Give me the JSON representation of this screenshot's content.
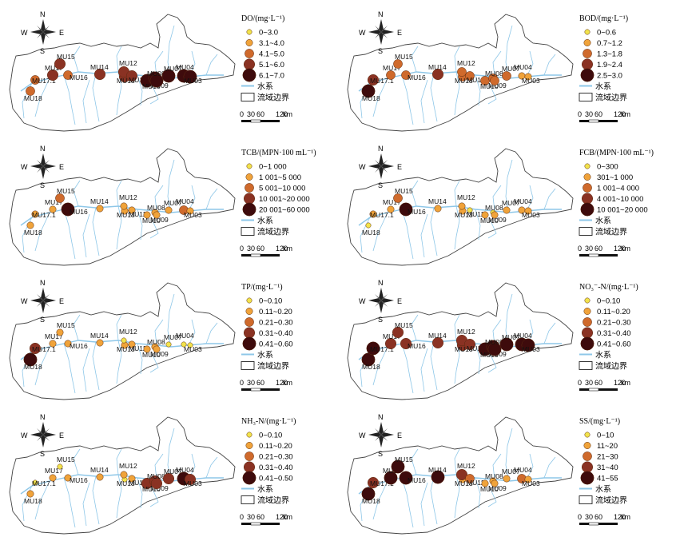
{
  "compass": {
    "n": "N",
    "s": "S",
    "e": "E",
    "w": "W"
  },
  "common_legend": {
    "river": "水系",
    "boundary": "流域边界"
  },
  "scale": {
    "ticks": [
      "0",
      "30",
      "60",
      "120"
    ],
    "unit": "km"
  },
  "panels": [
    {
      "id": "do",
      "title": "DO/(mg·L⁻¹)",
      "classes": [
        "0~3.0",
        "3.1~4.0",
        "4.1~5.0",
        "5.1~6.0",
        "6.1~7.0"
      ],
      "site_class": {
        "MU18": 3,
        "MU17": 4,
        "MU17.1": 3,
        "MU16": 3,
        "MU15": 4,
        "MU14": 4,
        "MU13": 4,
        "MU12": 4,
        "MU11": 4,
        "MU10": 5,
        "MU08": 5,
        "MU09": 5,
        "MU07": 5,
        "MU04": 5,
        "MU03": 5
      }
    },
    {
      "id": "bod",
      "title": "BOD/(mg·L⁻¹)",
      "classes": [
        "0~0.6",
        "0.7~1.2",
        "1.3~1.8",
        "1.9~2.4",
        "2.5~3.0"
      ],
      "site_class": {
        "MU18": 5,
        "MU17": 3,
        "MU17.1": 4,
        "MU16": 3,
        "MU15": 3,
        "MU14": 4,
        "MU13": 3,
        "MU12": 3,
        "MU11": 3,
        "MU10": 3,
        "MU08": 3,
        "MU09": 3,
        "MU07": 3,
        "MU04": 2,
        "MU03": 2
      }
    },
    {
      "id": "tcb",
      "title": "TCB/(MPN·100 mL⁻¹)",
      "classes": [
        "0~1 000",
        "1 001~5 000",
        "5 001~10 000",
        "10 001~20 000",
        "20 001~60 000"
      ],
      "site_class": {
        "MU18": 2,
        "MU17": 2,
        "MU17.1": 2,
        "MU16": 5,
        "MU15": 3,
        "MU14": 2,
        "MU13": 2,
        "MU12": 2,
        "MU11": 2,
        "MU10": 2,
        "MU08": 2,
        "MU09": 2,
        "MU07": 2,
        "MU04": 3,
        "MU03": 2
      }
    },
    {
      "id": "fcb",
      "title": "FCB/(MPN·100 mL⁻¹)",
      "classes": [
        "0~300",
        "301~1 000",
        "1 001~4 000",
        "4 001~10 000",
        "10 001~20 000"
      ],
      "site_class": {
        "MU18": 1,
        "MU17": 2,
        "MU17.1": 2,
        "MU16": 5,
        "MU15": 3,
        "MU14": 2,
        "MU13": 2,
        "MU12": 2,
        "MU11": 1,
        "MU10": 2,
        "MU08": 2,
        "MU09": 1,
        "MU07": 2,
        "MU04": 2,
        "MU03": 2
      }
    },
    {
      "id": "tp",
      "title": "TP/(mg·L⁻¹)",
      "classes": [
        "0~0.10",
        "0.11~0.20",
        "0.21~0.30",
        "0.31~0.40",
        "0.41~0.60"
      ],
      "site_class": {
        "MU18": 5,
        "MU17": 2,
        "MU17.1": 4,
        "MU16": 2,
        "MU15": 2,
        "MU14": 2,
        "MU13": 2,
        "MU12": 1,
        "MU11": 2,
        "MU10": 2,
        "MU08": 2,
        "MU09": 2,
        "MU07": 1,
        "MU04": 1,
        "MU03": 1
      }
    },
    {
      "id": "no3",
      "title": "NO₃⁻-N/(mg·L⁻¹)",
      "classes": [
        "0~0.10",
        "0.11~0.20",
        "0.21~0.30",
        "0.31~0.40",
        "0.41~0.60"
      ],
      "site_class": {
        "MU18": 5,
        "MU17": 4,
        "MU17.1": 5,
        "MU16": 4,
        "MU15": 4,
        "MU14": 4,
        "MU13": 4,
        "MU12": 4,
        "MU11": 4,
        "MU10": 5,
        "MU08": 5,
        "MU09": 5,
        "MU07": 5,
        "MU04": 5,
        "MU03": 5
      }
    },
    {
      "id": "nh3",
      "title": "NH₃-N/(mg·L⁻¹)",
      "classes": [
        "0~0.10",
        "0.11~0.20",
        "0.21~0.30",
        "0.31~0.40",
        "0.41~0.50"
      ],
      "site_class": {
        "MU18": 2,
        "MU17": 2,
        "MU17.1": 1,
        "MU16": 2,
        "MU15": 1,
        "MU14": 2,
        "MU13": 1,
        "MU12": 2,
        "MU11": 2,
        "MU10": 4,
        "MU08": 4,
        "MU09": 4,
        "MU07": 4,
        "MU04": 5,
        "MU03": 4
      }
    },
    {
      "id": "ss",
      "title": "SS/(mg·L⁻¹)",
      "classes": [
        "0~10",
        "11~20",
        "21~30",
        "31~40",
        "41~55"
      ],
      "site_class": {
        "MU18": 5,
        "MU17": 5,
        "MU17.1": 4,
        "MU16": 5,
        "MU15": 5,
        "MU14": 5,
        "MU13": 2,
        "MU12": 4,
        "MU11": 3,
        "MU10": 2,
        "MU08": 2,
        "MU09": 2,
        "MU07": 2,
        "MU04": 3,
        "MU03": 2
      }
    }
  ]
}
